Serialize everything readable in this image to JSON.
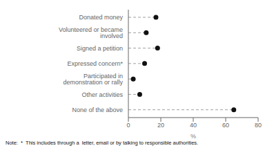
{
  "chart_data": {
    "type": "lollipop",
    "orientation": "horizontal",
    "categories": [
      "None of the above",
      "Other activities",
      "Participated in demonstration or rally",
      "Expressed concern*",
      "Signed a petition",
      "Volunteered or became involved",
      "Donated money"
    ],
    "values": [
      65.0,
      7.0,
      3.0,
      10.0,
      18.0,
      11.0,
      17.0
    ],
    "xlabel": "%",
    "xlim": [
      0,
      80
    ],
    "xticks": [
      0,
      20,
      40,
      60,
      80
    ],
    "annotations": [
      "Note:  *  This includes through a  letter, email or by talking to responsible authorities."
    ],
    "color": "#111111",
    "line_style": "dashed",
    "marker": "circle",
    "grid": false
  }
}
